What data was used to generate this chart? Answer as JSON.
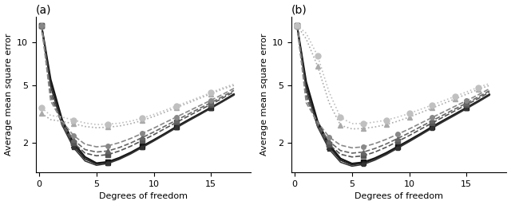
{
  "title_a": "(a)",
  "title_b": "(b)",
  "xlabel": "Degrees of freedom",
  "ylabel": "Average mean square error",
  "xlim": [
    -0.3,
    18.5
  ],
  "xticks": [
    0,
    5,
    10,
    15
  ],
  "series_a": [
    {
      "color": "#111111",
      "linestyle": "-",
      "marker": "s",
      "markersize": 4,
      "lw": 1.5,
      "markevery": 3,
      "x": [
        0.2,
        1,
        2,
        3,
        4,
        5,
        6,
        7,
        8,
        9,
        10,
        11,
        12,
        13,
        14,
        15,
        16,
        17
      ],
      "y": [
        13.0,
        5.5,
        2.9,
        2.0,
        1.6,
        1.45,
        1.48,
        1.58,
        1.72,
        1.9,
        2.1,
        2.33,
        2.6,
        2.88,
        3.18,
        3.52,
        3.9,
        4.35
      ]
    },
    {
      "color": "#222222",
      "linestyle": "-",
      "marker": "^",
      "markersize": 4,
      "lw": 1.3,
      "markevery": 3,
      "x": [
        0.2,
        1,
        2,
        3,
        4,
        5,
        6,
        7,
        8,
        9,
        10,
        11,
        12,
        13,
        14,
        15,
        16,
        17
      ],
      "y": [
        13.0,
        5.2,
        2.78,
        1.92,
        1.55,
        1.43,
        1.46,
        1.56,
        1.7,
        1.88,
        2.08,
        2.31,
        2.58,
        2.86,
        3.16,
        3.5,
        3.88,
        4.32
      ]
    },
    {
      "color": "#333333",
      "linestyle": "-",
      "marker": "s",
      "markersize": 3.5,
      "lw": 1.1,
      "markevery": 3,
      "x": [
        0.2,
        1,
        2,
        3,
        4,
        5,
        6,
        7,
        8,
        9,
        10,
        11,
        12,
        13,
        14,
        15,
        16,
        17
      ],
      "y": [
        13.0,
        4.9,
        2.65,
        1.85,
        1.5,
        1.4,
        1.44,
        1.54,
        1.68,
        1.86,
        2.06,
        2.29,
        2.55,
        2.83,
        3.13,
        3.47,
        3.85,
        4.28
      ]
    },
    {
      "color": "#555555",
      "linestyle": "--",
      "marker": "s",
      "markersize": 4,
      "lw": 1.2,
      "markevery": 3,
      "x": [
        0.2,
        1,
        2,
        3,
        4,
        5,
        6,
        7,
        8,
        9,
        10,
        11,
        12,
        13,
        14,
        15,
        16,
        17
      ],
      "y": [
        13.0,
        4.5,
        2.65,
        2.0,
        1.7,
        1.63,
        1.66,
        1.76,
        1.9,
        2.08,
        2.28,
        2.52,
        2.78,
        3.06,
        3.37,
        3.7,
        4.08,
        4.52
      ]
    },
    {
      "color": "#666666",
      "linestyle": "--",
      "marker": "^",
      "markersize": 4,
      "lw": 1.2,
      "markevery": 3,
      "x": [
        0.2,
        1,
        2,
        3,
        4,
        5,
        6,
        7,
        8,
        9,
        10,
        11,
        12,
        13,
        14,
        15,
        16,
        17
      ],
      "y": [
        13.0,
        4.2,
        2.72,
        2.1,
        1.8,
        1.73,
        1.76,
        1.86,
        2.0,
        2.18,
        2.38,
        2.62,
        2.88,
        3.16,
        3.47,
        3.8,
        4.18,
        4.62
      ]
    },
    {
      "color": "#888888",
      "linestyle": "--",
      "marker": "o",
      "markersize": 4,
      "lw": 1.2,
      "markevery": 3,
      "x": [
        0.2,
        1,
        2,
        3,
        4,
        5,
        6,
        7,
        8,
        9,
        10,
        11,
        12,
        13,
        14,
        15,
        16,
        17
      ],
      "y": [
        13.0,
        3.9,
        2.82,
        2.25,
        1.96,
        1.88,
        1.91,
        2.01,
        2.15,
        2.33,
        2.53,
        2.77,
        3.03,
        3.31,
        3.62,
        3.95,
        4.33,
        4.77
      ]
    },
    {
      "color": "#aaaaaa",
      "linestyle": ":",
      "marker": "^",
      "markersize": 5,
      "lw": 1.2,
      "markevery": 3,
      "x": [
        0.2,
        1,
        2,
        3,
        4,
        5,
        6,
        7,
        8,
        9,
        10,
        11,
        12,
        13,
        14,
        15,
        16,
        17
      ],
      "y": [
        3.2,
        2.9,
        2.82,
        2.72,
        2.6,
        2.55,
        2.57,
        2.62,
        2.72,
        2.86,
        3.05,
        3.27,
        3.52,
        3.78,
        4.07,
        4.38,
        4.72,
        5.0
      ]
    },
    {
      "color": "#c0c0c0",
      "linestyle": ":",
      "marker": "o",
      "markersize": 5,
      "lw": 1.2,
      "markevery": 3,
      "x": [
        0.2,
        1,
        2,
        3,
        4,
        5,
        6,
        7,
        8,
        9,
        10,
        11,
        12,
        13,
        14,
        15,
        16,
        17
      ],
      "y": [
        3.5,
        3.1,
        3.02,
        2.88,
        2.75,
        2.68,
        2.7,
        2.74,
        2.83,
        2.97,
        3.15,
        3.37,
        3.61,
        3.87,
        4.15,
        4.46,
        4.8,
        5.1
      ]
    }
  ],
  "series_b": [
    {
      "color": "#111111",
      "linestyle": "-",
      "marker": "s",
      "markersize": 4,
      "lw": 1.5,
      "markevery": 3,
      "x": [
        0.2,
        1,
        2,
        3,
        4,
        5,
        6,
        7,
        8,
        9,
        10,
        11,
        12,
        13,
        14,
        15,
        16,
        17
      ],
      "y": [
        13.0,
        5.3,
        2.82,
        1.95,
        1.56,
        1.44,
        1.47,
        1.57,
        1.71,
        1.89,
        2.09,
        2.32,
        2.59,
        2.87,
        3.17,
        3.51,
        3.89,
        4.33
      ]
    },
    {
      "color": "#222222",
      "linestyle": "-",
      "marker": "^",
      "markersize": 4,
      "lw": 1.3,
      "markevery": 3,
      "x": [
        0.2,
        1,
        2,
        3,
        4,
        5,
        6,
        7,
        8,
        9,
        10,
        11,
        12,
        13,
        14,
        15,
        16,
        17
      ],
      "y": [
        13.0,
        5.0,
        2.7,
        1.88,
        1.52,
        1.41,
        1.45,
        1.55,
        1.69,
        1.87,
        2.07,
        2.3,
        2.57,
        2.85,
        3.15,
        3.49,
        3.87,
        4.31
      ]
    },
    {
      "color": "#333333",
      "linestyle": "-",
      "marker": "s",
      "markersize": 3.5,
      "lw": 1.1,
      "markevery": 3,
      "x": [
        0.2,
        1,
        2,
        3,
        4,
        5,
        6,
        7,
        8,
        9,
        10,
        11,
        12,
        13,
        14,
        15,
        16,
        17
      ],
      "y": [
        13.0,
        4.7,
        2.58,
        1.81,
        1.47,
        1.38,
        1.42,
        1.52,
        1.66,
        1.84,
        2.04,
        2.27,
        2.53,
        2.81,
        3.11,
        3.45,
        3.83,
        4.27
      ]
    },
    {
      "color": "#555555",
      "linestyle": "--",
      "marker": "s",
      "markersize": 4,
      "lw": 1.2,
      "markevery": 3,
      "x": [
        0.2,
        1,
        2,
        3,
        4,
        5,
        6,
        7,
        8,
        9,
        10,
        11,
        12,
        13,
        14,
        15,
        16,
        17
      ],
      "y": [
        13.0,
        4.4,
        2.6,
        1.95,
        1.67,
        1.6,
        1.63,
        1.73,
        1.87,
        2.05,
        2.25,
        2.49,
        2.75,
        3.03,
        3.34,
        3.67,
        4.05,
        4.49
      ]
    },
    {
      "color": "#666666",
      "linestyle": "--",
      "marker": "^",
      "markersize": 4,
      "lw": 1.2,
      "markevery": 3,
      "x": [
        0.2,
        1,
        2,
        3,
        4,
        5,
        6,
        7,
        8,
        9,
        10,
        11,
        12,
        13,
        14,
        15,
        16,
        17
      ],
      "y": [
        13.0,
        4.1,
        2.68,
        2.05,
        1.77,
        1.7,
        1.73,
        1.83,
        1.97,
        2.15,
        2.35,
        2.59,
        2.85,
        3.13,
        3.44,
        3.77,
        4.15,
        4.59
      ]
    },
    {
      "color": "#888888",
      "linestyle": "--",
      "marker": "o",
      "markersize": 4,
      "lw": 1.2,
      "markevery": 3,
      "x": [
        0.2,
        1,
        2,
        3,
        4,
        5,
        6,
        7,
        8,
        9,
        10,
        11,
        12,
        13,
        14,
        15,
        16,
        17
      ],
      "y": [
        13.0,
        3.8,
        2.78,
        2.2,
        1.93,
        1.85,
        1.88,
        1.98,
        2.12,
        2.3,
        2.5,
        2.74,
        3.0,
        3.28,
        3.59,
        3.92,
        4.3,
        4.74
      ]
    },
    {
      "color": "#aaaaaa",
      "linestyle": ":",
      "marker": "^",
      "markersize": 5,
      "lw": 1.2,
      "markevery": 2,
      "x": [
        0.2,
        1,
        2,
        3,
        4,
        5,
        6,
        7,
        8,
        9,
        10,
        11,
        12,
        13,
        14,
        15,
        16,
        17
      ],
      "y": [
        13.0,
        10.5,
        6.8,
        3.8,
        2.65,
        2.5,
        2.52,
        2.58,
        2.68,
        2.83,
        3.02,
        3.24,
        3.49,
        3.75,
        4.04,
        4.35,
        4.69,
        5.0
      ]
    },
    {
      "color": "#c0c0c0",
      "linestyle": ":",
      "marker": "o",
      "markersize": 5,
      "lw": 1.2,
      "markevery": 2,
      "x": [
        0.2,
        1,
        2,
        3,
        4,
        5,
        6,
        7,
        8,
        9,
        10,
        11,
        12,
        13,
        14,
        15,
        16,
        17
      ],
      "y": [
        13.0,
        11.5,
        8.0,
        4.5,
        3.0,
        2.72,
        2.73,
        2.79,
        2.88,
        3.02,
        3.2,
        3.42,
        3.66,
        3.92,
        4.2,
        4.51,
        4.85,
        5.15
      ]
    }
  ]
}
